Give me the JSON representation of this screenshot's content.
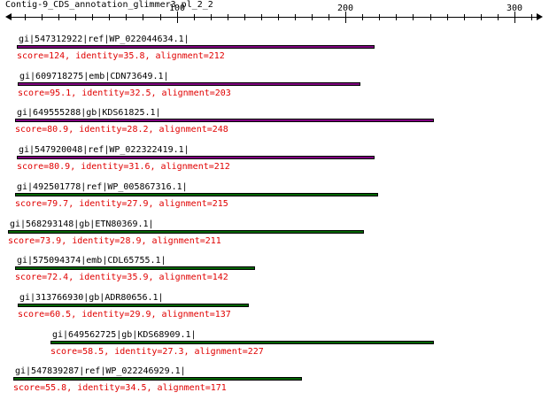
{
  "title": "Contig-9_CDS_annotation_glimmer3.pl_2_2",
  "axis": {
    "min": 0,
    "max": 310,
    "major_ticks": [
      100,
      200,
      300
    ],
    "minor_step": 10,
    "labels": [
      "100",
      "200",
      "300"
    ]
  },
  "colors": {
    "purple": "#800080",
    "green": "#006400",
    "score": "#e00000"
  },
  "hits": [
    {
      "name": "gi|547312922|ref|WP_022044634.1|",
      "score_text": "score=124, identity=35.8, alignment=212",
      "start": 5,
      "end": 217,
      "color": "#800080"
    },
    {
      "name": "gi|609718275|emb|CDN73649.1|",
      "score_text": "score=95.1, identity=32.5, alignment=203",
      "start": 6,
      "end": 209,
      "color": "#800080"
    },
    {
      "name": "gi|649555288|gb|KDS61825.1|",
      "score_text": "score=80.9, identity=28.2, alignment=248",
      "start": 4,
      "end": 252,
      "color": "#800080"
    },
    {
      "name": "gi|547920048|ref|WP_022322419.1|",
      "score_text": "score=80.9, identity=31.6, alignment=212",
      "start": 5,
      "end": 217,
      "color": "#800080"
    },
    {
      "name": "gi|492501778|ref|WP_005867316.1|",
      "score_text": "score=79.7, identity=27.9, alignment=215",
      "start": 4,
      "end": 219,
      "color": "#006400"
    },
    {
      "name": "gi|568293148|gb|ETN80369.1|",
      "score_text": "score=73.9, identity=28.9, alignment=211",
      "start": 0,
      "end": 211,
      "color": "#006400"
    },
    {
      "name": "gi|575094374|emb|CDL65755.1|",
      "score_text": "score=72.4, identity=35.9, alignment=142",
      "start": 4,
      "end": 146,
      "color": "#006400"
    },
    {
      "name": "gi|313766930|gb|ADR80656.1|",
      "score_text": "score=60.5, identity=29.9, alignment=137",
      "start": 6,
      "end": 143,
      "color": "#006400"
    },
    {
      "name": "gi|649562725|gb|KDS68909.1|",
      "score_text": "score=58.5, identity=27.3, alignment=227",
      "start": 25,
      "end": 252,
      "color": "#006400"
    },
    {
      "name": "gi|547839287|ref|WP_022246929.1|",
      "score_text": "score=55.8, identity=34.5, alignment=171",
      "start": 3,
      "end": 174,
      "color": "#006400"
    }
  ]
}
